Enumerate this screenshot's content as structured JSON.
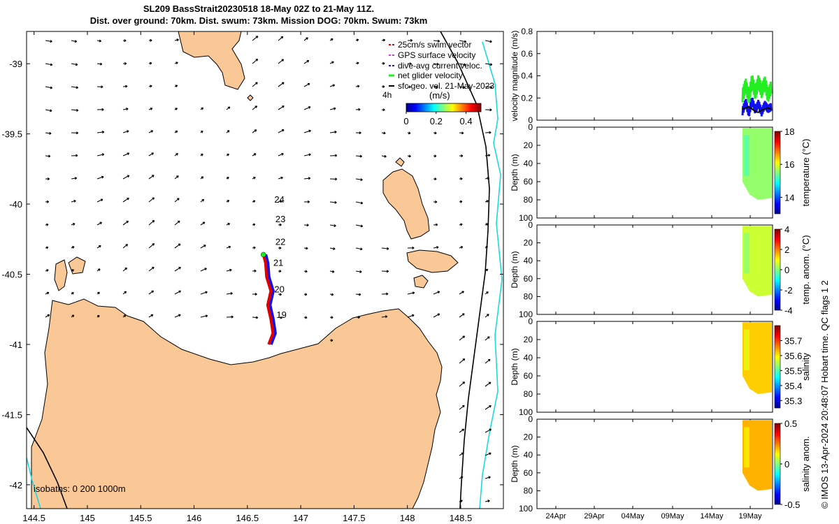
{
  "header": {
    "title_line1": "SL209 BassStrait20230518 18-May 02Z to 21-May 11Z.",
    "title_line2": "Dist. over ground: 70km. Dist. swum: 73km. Mission DOG: 70km. Swum: 73km"
  },
  "credit": "© IMOS 13-Apr-2024 20:48:07 Hobart time. QC flags 1  2",
  "colors": {
    "land": "#fac896",
    "cyan": "#1ad9e0",
    "glider_red": "#e00000",
    "glider_blue": "#1010ee",
    "green": "#22ee22"
  },
  "chart_data": [
    {
      "type": "scatter",
      "name": "map",
      "x_ticks": [
        144.5,
        145,
        145.5,
        146,
        146.5,
        147,
        147.5,
        148,
        148.5
      ],
      "y_ticks": [
        -39,
        -39.5,
        -40,
        -40.5,
        -41,
        -41.5,
        -42
      ],
      "xlim": [
        144.43,
        148.9
      ],
      "ylim": [
        -42.17,
        -38.77
      ],
      "legend": {
        "position": "top-right",
        "entries": [
          "25cm/s swim vector",
          "GPS surface velocity",
          "dive-avg current veloc.",
          "net glider velocity",
          "sfc geo. vel. 21-May-2023"
        ],
        "extra": "4h"
      },
      "colorbar": {
        "label": "(m/s)",
        "ticks": [
          "0",
          "0.2",
          "0.4"
        ],
        "range": [
          0,
          0.5
        ]
      },
      "isobaths_label": "isobaths: 0   200  1000m",
      "day_labels": [
        {
          "label": "24",
          "lon": 146.8,
          "lat": -39.99
        },
        {
          "label": "23",
          "lon": 146.81,
          "lat": -40.13
        },
        {
          "label": "22",
          "lon": 146.81,
          "lat": -40.29
        },
        {
          "label": "21",
          "lon": 146.79,
          "lat": -40.44
        },
        {
          "label": "20",
          "lon": 146.8,
          "lat": -40.63
        },
        {
          "label": "19",
          "lon": 146.82,
          "lat": -40.81
        }
      ],
      "track": [
        [
          146.7,
          -41.0
        ],
        [
          146.74,
          -40.92
        ],
        [
          146.72,
          -40.82
        ],
        [
          146.69,
          -40.72
        ],
        [
          146.72,
          -40.62
        ],
        [
          146.68,
          -40.52
        ],
        [
          146.67,
          -40.42
        ],
        [
          146.65,
          -40.36
        ]
      ]
    },
    {
      "type": "line",
      "name": "velocity",
      "ylabel": "velocity magnitude (m/s)",
      "y_ticks": [
        "0",
        "0.2",
        "0.4",
        "0.6",
        "0.8"
      ],
      "ylim": [
        0,
        0.8
      ],
      "series": [
        {
          "values": [
            0.22,
            0.32,
            0.2,
            0.36,
            0.24,
            0.35,
            0.26,
            0.34,
            0.22,
            0.3
          ]
        },
        {
          "values": [
            0.08,
            0.16,
            0.06,
            0.18,
            0.09,
            0.15,
            0.07,
            0.14,
            0.1,
            0.12
          ]
        },
        {
          "values": [
            0.1,
            0.11,
            0.12,
            0.1,
            0.08,
            0.07,
            0.09,
            0.1,
            0.11,
            0.1
          ]
        }
      ]
    },
    {
      "type": "heatmap",
      "name": "temperature",
      "ylabel": "Depth (m)",
      "y_ticks": [
        "0",
        "20",
        "40",
        "60",
        "80",
        "100"
      ],
      "colorbar": {
        "label": "temperature (°C)",
        "ticks": [
          "18",
          "16",
          "14"
        ],
        "range": [
          13,
          18
        ]
      },
      "value": 15.6
    },
    {
      "type": "heatmap",
      "name": "temp_anom",
      "ylabel": "Depth (m)",
      "y_ticks": [
        "0",
        "20",
        "40",
        "60",
        "80",
        "100"
      ],
      "colorbar": {
        "label": "temp. anom. (°C)",
        "ticks": [
          "4",
          "2",
          "0",
          "-2",
          "-4"
        ],
        "range": [
          -4,
          4
        ]
      },
      "value": 0.6
    },
    {
      "type": "heatmap",
      "name": "salinity",
      "ylabel": "Depth (m)",
      "y_ticks": [
        "0",
        "20",
        "40",
        "60",
        "80",
        "100"
      ],
      "colorbar": {
        "label": "salinity",
        "ticks": [
          "35.7",
          "35.6",
          "35.5",
          "35.4",
          "35.3"
        ],
        "range": [
          35.25,
          35.8
        ]
      },
      "value": 35.62
    },
    {
      "type": "heatmap",
      "name": "salinity_anom",
      "ylabel": "Depth (m)",
      "y_ticks": [
        "0",
        "20",
        "40",
        "60",
        "80",
        "100"
      ],
      "colorbar": {
        "label": "salinity anom.",
        "ticks": [
          "0.5",
          "0",
          "-0.5"
        ],
        "range": [
          -0.5,
          0.5
        ]
      },
      "value": 0.2,
      "x_ticks": [
        "24Apr",
        "29Apr",
        "04May",
        "09May",
        "14May",
        "19May"
      ]
    }
  ]
}
